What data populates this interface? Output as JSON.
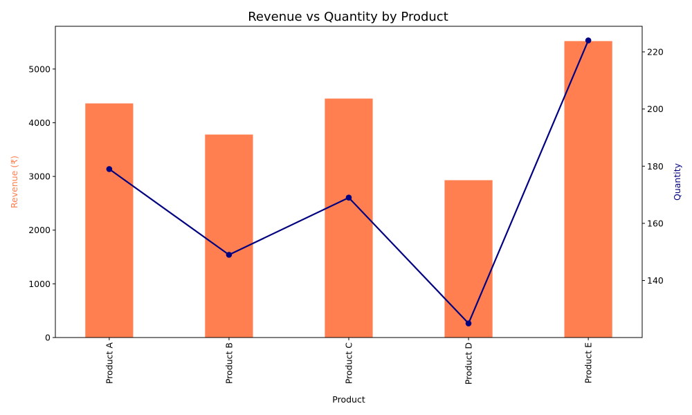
{
  "chart_data": {
    "type": "bar",
    "title": "Revenue vs Quantity by Product",
    "xlabel": "Product",
    "categories": [
      "Product A",
      "Product B",
      "Product C",
      "Product D",
      "Product E"
    ],
    "series": [
      {
        "name": "Revenue (₹)",
        "type": "bar",
        "axis": "left",
        "color": "#ff7f50",
        "values": [
          4360,
          3780,
          4450,
          2930,
          5520
        ]
      },
      {
        "name": "Quantity",
        "type": "line",
        "axis": "right",
        "color": "#000080",
        "marker": "circle",
        "values": [
          179,
          149,
          169,
          125,
          224
        ]
      }
    ],
    "y_left": {
      "label": "Revenue (₹)",
      "label_color": "#ff7f50",
      "ylim": [
        0,
        5796
      ],
      "ticks": [
        0,
        1000,
        2000,
        3000,
        4000,
        5000
      ]
    },
    "y_right": {
      "label": "Quantity",
      "label_color": "#000080",
      "ylim": [
        120.05,
        228.95
      ],
      "ticks": [
        140,
        160,
        180,
        200,
        220
      ]
    },
    "grid": false,
    "legend": "none"
  }
}
